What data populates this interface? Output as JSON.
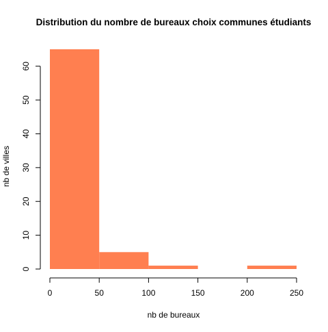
{
  "chart_data": {
    "type": "bar",
    "subtype": "histogram",
    "title": "Distribution du nombre de bureaux choix communes étudiants",
    "xlabel": "nb de bureaux",
    "ylabel": "nb de villes",
    "bin_edges": [
      0,
      50,
      100,
      150,
      200,
      250
    ],
    "values": [
      65,
      5,
      1,
      0,
      1
    ],
    "xlim": [
      0,
      250
    ],
    "ylim": [
      0,
      65
    ],
    "x_ticks": [
      0,
      50,
      100,
      150,
      200,
      250
    ],
    "y_ticks": [
      0,
      10,
      20,
      30,
      40,
      50,
      60
    ],
    "bar_color": "#FF7F50",
    "grid": false,
    "legend": "none"
  }
}
